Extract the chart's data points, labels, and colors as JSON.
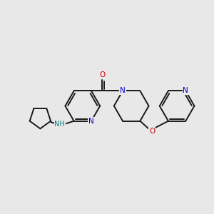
{
  "background_color": "#e8e8e8",
  "bond_color": "#1a1a1a",
  "N_color": "#0000cc",
  "O_color": "#cc0000",
  "NH_color": "#008080",
  "figsize": [
    3.0,
    3.0
  ],
  "dpi": 100,
  "xlim": [
    0,
    10
  ],
  "ylim": [
    0,
    10
  ]
}
